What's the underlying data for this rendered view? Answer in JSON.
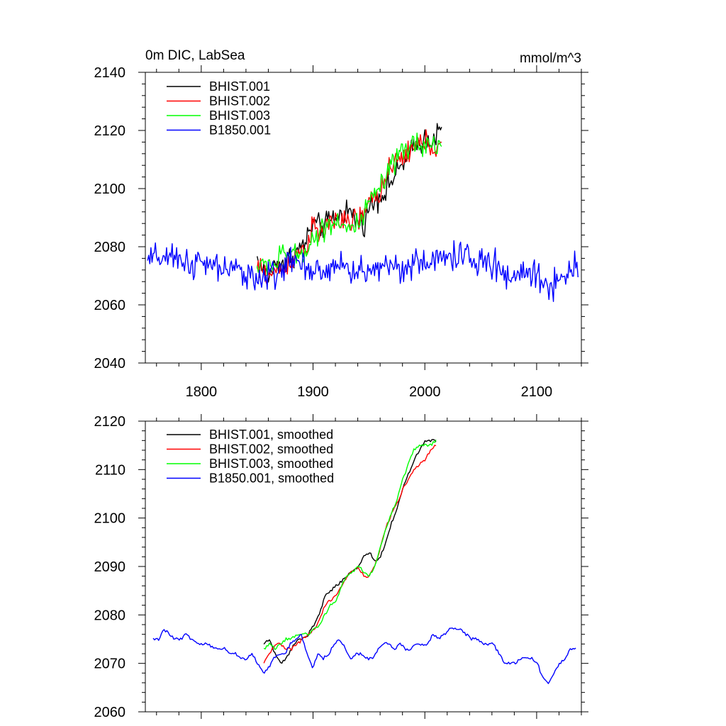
{
  "chart_data": [
    {
      "type": "line",
      "title": "0m DIC, LabSea",
      "units": "mmol/m^3",
      "xlim": [
        1750,
        2140
      ],
      "ylim": [
        2040,
        2140
      ],
      "xticks": [
        1800,
        1900,
        2000,
        2100
      ],
      "xtick_labels": [
        "1800",
        "1900",
        "2000",
        "2100"
      ],
      "yticks": [
        2040,
        2060,
        2080,
        2100,
        2120,
        2140
      ],
      "ytick_labels": [
        "2040",
        "2060",
        "2080",
        "2100",
        "2120",
        "2140"
      ],
      "grid": false,
      "legend_position": "top-left",
      "series": [
        {
          "name": "BHIST.001",
          "color": "#000000",
          "x_start": 1850,
          "x_end": 2015,
          "x_step": 5,
          "values": [
            2076,
            2072,
            2070,
            2073,
            2075,
            2074,
            2077,
            2078,
            2080,
            2083,
            2088,
            2087,
            2087,
            2089,
            2090,
            2091,
            2093,
            2091,
            2088,
            2088,
            2093,
            2096,
            2098,
            2099,
            2103,
            2105,
            2109,
            2110,
            2114,
            2116,
            2117,
            2117,
            2118,
            2120
          ]
        },
        {
          "name": "BHIST.002",
          "color": "#ff0000",
          "x_start": 1850,
          "x_end": 2015,
          "x_step": 5,
          "values": [
            2072,
            2072,
            2070,
            2071,
            2073,
            2072,
            2076,
            2077,
            2079,
            2081,
            2087,
            2084,
            2086,
            2088,
            2090,
            2089,
            2087,
            2089,
            2090,
            2090,
            2095,
            2098,
            2099,
            2104,
            2106,
            2109,
            2111,
            2113,
            2113,
            2116,
            2116,
            2115,
            2114,
            2114
          ]
        },
        {
          "name": "BHIST.003",
          "color": "#00ff00",
          "x_start": 1850,
          "x_end": 2015,
          "x_step": 5,
          "values": [
            2073,
            2073,
            2075,
            2073,
            2076,
            2078,
            2078,
            2076,
            2078,
            2080,
            2083,
            2084,
            2087,
            2088,
            2089,
            2089,
            2086,
            2086,
            2088,
            2089,
            2095,
            2098,
            2100,
            2103,
            2107,
            2110,
            2112,
            2113,
            2116,
            2116,
            2115,
            2115,
            2115,
            2116
          ]
        },
        {
          "name": "B1850.001",
          "color": "#0000ff",
          "x_start": 1752,
          "x_end": 2137,
          "x_step": 5,
          "values": [
            2075,
            2075,
            2077,
            2076,
            2075,
            2075,
            2076,
            2075,
            2074,
            2074,
            2074,
            2073,
            2073,
            2073,
            2072,
            2072,
            2071,
            2071,
            2072,
            2070,
            2068,
            2069,
            2071,
            2072,
            2072,
            2074,
            2075,
            2076,
            2072,
            2069,
            2072,
            2071,
            2072,
            2074,
            2075,
            2073,
            2071,
            2072,
            2072,
            2071,
            2071,
            2073,
            2074,
            2074,
            2073,
            2074,
            2073,
            2073,
            2074,
            2074,
            2074,
            2076,
            2075,
            2076,
            2077,
            2077,
            2077,
            2076,
            2075,
            2075,
            2074,
            2074,
            2074,
            2072,
            2070,
            2070,
            2070,
            2071,
            2071,
            2071,
            2070,
            2067,
            2066,
            2068,
            2070,
            2071,
            2073,
            2073
          ]
        }
      ]
    },
    {
      "type": "line",
      "xlim": [
        1750,
        2140
      ],
      "ylim": [
        2060,
        2120
      ],
      "xticks": [
        1800,
        1900,
        2000,
        2100
      ],
      "yticks": [
        2060,
        2070,
        2080,
        2090,
        2100,
        2110,
        2120
      ],
      "ytick_labels": [
        "2060",
        "2070",
        "2080",
        "2090",
        "2100",
        "2110",
        "2120"
      ],
      "grid": false,
      "legend_position": "top-left",
      "series": [
        {
          "name": "BHIST.001, smoothed",
          "color": "#000000",
          "x_start": 1856,
          "x_end": 2010,
          "x_step": 5,
          "values": [
            2074,
            2075,
            2072,
            2070,
            2071,
            2073,
            2075,
            2075,
            2076,
            2078,
            2080,
            2084,
            2085,
            2086,
            2087,
            2088,
            2089,
            2090,
            2092,
            2093,
            2091,
            2092,
            2095,
            2099,
            2102,
            2106,
            2109,
            2112,
            2114,
            2116,
            2116,
            2116
          ]
        },
        {
          "name": "BHIST.002, smoothed",
          "color": "#ff0000",
          "x_start": 1856,
          "x_end": 2010,
          "x_step": 5,
          "values": [
            2070,
            2072,
            2074,
            2074,
            2073,
            2073,
            2074,
            2075,
            2076,
            2077,
            2079,
            2082,
            2083,
            2084,
            2086,
            2088,
            2089,
            2090,
            2088,
            2088,
            2090,
            2094,
            2098,
            2101,
            2103,
            2106,
            2108,
            2110,
            2111,
            2112,
            2114,
            2115
          ]
        },
        {
          "name": "BHIST.003, smoothed",
          "color": "#00ff00",
          "x_start": 1856,
          "x_end": 2010,
          "x_step": 5,
          "values": [
            2073,
            2074,
            2073,
            2074,
            2075,
            2075,
            2076,
            2076,
            2076,
            2077,
            2078,
            2080,
            2082,
            2083,
            2086,
            2088,
            2089,
            2090,
            2089,
            2088,
            2090,
            2094,
            2098,
            2101,
            2104,
            2108,
            2111,
            2114,
            2115,
            2115,
            2115,
            2116
          ]
        },
        {
          "name": "B1850.001, smoothed",
          "color": "#0000ff",
          "x_start": 1757,
          "x_end": 2135,
          "x_step": 5,
          "values": [
            2075,
            2075,
            2077,
            2076,
            2075,
            2075,
            2076,
            2075,
            2074,
            2074,
            2074,
            2073,
            2073,
            2073,
            2072,
            2072,
            2071,
            2071,
            2072,
            2070,
            2068,
            2069,
            2071,
            2072,
            2072,
            2074,
            2075,
            2076,
            2072,
            2069,
            2072,
            2071,
            2072,
            2074,
            2075,
            2073,
            2071,
            2072,
            2072,
            2071,
            2071,
            2073,
            2074,
            2074,
            2073,
            2074,
            2073,
            2073,
            2074,
            2074,
            2074,
            2076,
            2075,
            2076,
            2077,
            2077,
            2077,
            2076,
            2075,
            2075,
            2074,
            2074,
            2074,
            2072,
            2070,
            2070,
            2070,
            2071,
            2071,
            2071,
            2070,
            2067,
            2066,
            2068,
            2070,
            2071,
            2073,
            2073
          ]
        }
      ]
    }
  ]
}
